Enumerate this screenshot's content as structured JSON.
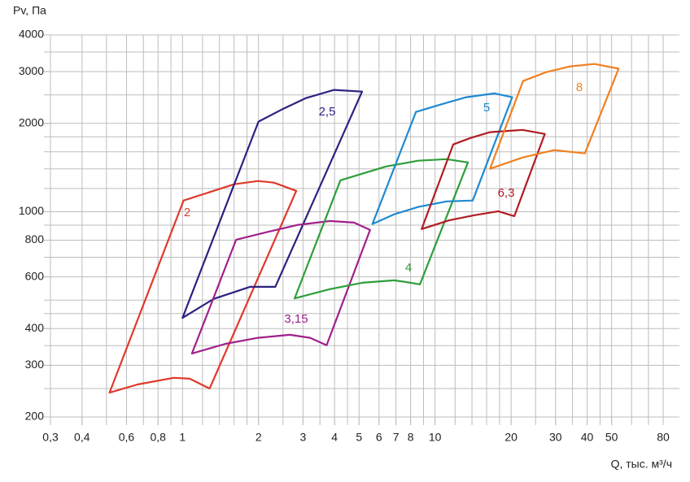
{
  "chart_data": {
    "type": "region",
    "y_label": "Pv, Па",
    "x_label": "Q, тыс. м³/ч",
    "log_x": true,
    "log_y": true,
    "grid": true,
    "xlim": [
      0.3,
      80
    ],
    "ylim": [
      200,
      4000
    ],
    "xticks": [
      {
        "value": 0.3,
        "label": "0,3"
      },
      {
        "value": 0.4,
        "label": "0,4"
      },
      {
        "value": 0.6,
        "label": "0,6"
      },
      {
        "value": 0.8,
        "label": "0,8"
      },
      1,
      2,
      3,
      4,
      5,
      6,
      7,
      8,
      10,
      20,
      30,
      40,
      50,
      80
    ],
    "yticks": [
      200,
      300,
      400,
      600,
      800,
      1000,
      2000,
      3000,
      4000
    ],
    "xgrid": [
      0.3,
      0.4,
      0.5,
      0.6,
      0.7,
      0.8,
      0.9,
      1,
      1.2,
      1.4,
      1.6,
      1.8,
      2,
      2.5,
      3,
      3.5,
      4,
      4.5,
      5,
      6,
      7,
      8,
      9,
      10,
      12,
      14,
      16,
      18,
      20,
      25,
      30,
      35,
      40,
      45,
      50,
      60,
      70,
      80
    ],
    "ygrid": [
      200,
      250,
      300,
      350,
      400,
      450,
      500,
      600,
      700,
      800,
      900,
      1000,
      1200,
      1400,
      1600,
      1800,
      2000,
      2500,
      3000,
      3500,
      4000
    ],
    "series": [
      {
        "name": "2",
        "color": "#e0392b",
        "x": [
          0.514,
          0.664,
          0.923,
          1.068,
          1.28,
          2.82,
          2.3,
          1.99,
          1.6,
          1.01
        ],
        "values": [
          242,
          258,
          272,
          270,
          250,
          1178,
          1256,
          1272,
          1240,
          1092
        ]
      },
      {
        "name": "2,5",
        "color": "#2a2280",
        "x": [
          1.0,
          1.33,
          1.85,
          2.33,
          5.14,
          3.98,
          3.08,
          2.47,
          2.0
        ],
        "values": [
          435,
          505,
          555,
          555,
          2566,
          2600,
          2438,
          2228,
          2028
        ]
      },
      {
        "name": "3,15",
        "color": "#a0208a",
        "x": [
          1.09,
          1.48,
          1.99,
          2.66,
          3.2,
          3.72,
          5.53,
          4.78,
          3.84,
          2.86,
          2.14,
          1.63
        ],
        "values": [
          329,
          355,
          372,
          381,
          372,
          351,
          867,
          918,
          930,
          902,
          851,
          803
        ]
      },
      {
        "name": "4",
        "color": "#2e9e3a",
        "x": [
          2.78,
          3.84,
          5.14,
          6.88,
          7.68,
          8.71,
          13.5,
          11.1,
          8.58,
          6.4,
          4.22
        ],
        "values": [
          507,
          545,
          573,
          584,
          576,
          566,
          1472,
          1510,
          1492,
          1426,
          1280
        ]
      },
      {
        "name": "5",
        "color": "#1e8ad0",
        "x": [
          5.65,
          6.88,
          8.58,
          11.1,
          14.1,
          20.2,
          17.2,
          13.3,
          10.7,
          8.4
        ],
        "values": [
          908,
          980,
          1038,
          1084,
          1092,
          2455,
          2530,
          2455,
          2328,
          2188
        ]
      },
      {
        "name": "6,3",
        "color": "#b01c22",
        "x": [
          8.85,
          11.4,
          14.3,
          17.8,
          20.6,
          27.2,
          22.2,
          16.5,
          13.8,
          11.8
        ],
        "values": [
          873,
          936,
          973,
          1004,
          966,
          1840,
          1900,
          1866,
          1783,
          1695
        ]
      },
      {
        "name": "8",
        "color": "#f08020",
        "x": [
          16.5,
          22.2,
          29.6,
          39.2,
          53.3,
          42.8,
          34.4,
          27.6,
          22.3
        ],
        "values": [
          1400,
          1530,
          1621,
          1580,
          3070,
          3185,
          3127,
          2990,
          2787
        ]
      }
    ]
  }
}
